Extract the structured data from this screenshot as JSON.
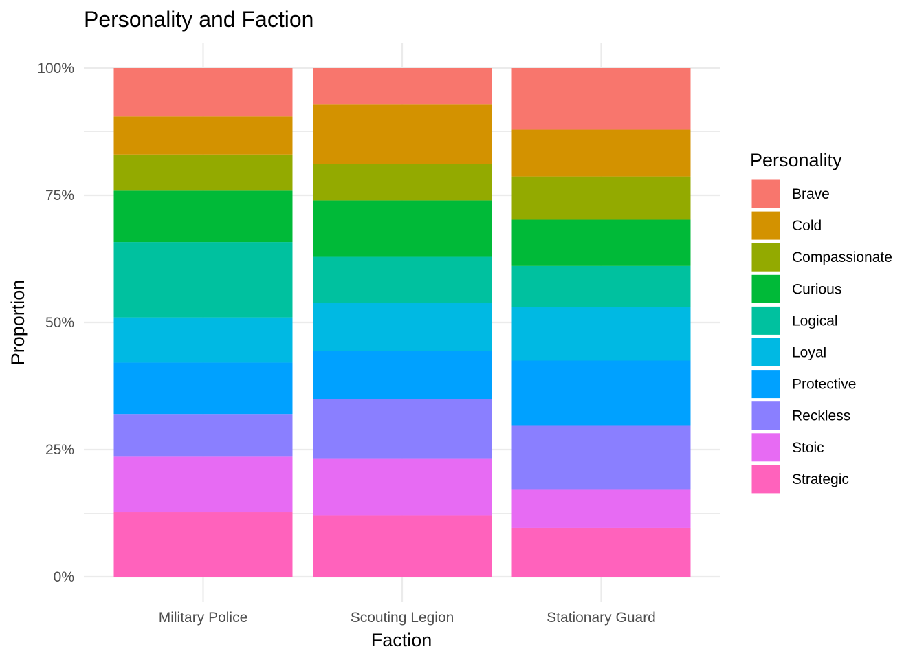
{
  "chart_data": {
    "type": "bar",
    "stacked": "proportion",
    "title": "Personality and Faction",
    "xlabel": "Faction",
    "ylabel": "Proportion",
    "ylim": [
      0,
      1
    ],
    "yticks": [
      0,
      0.25,
      0.5,
      0.75,
      1
    ],
    "ytick_labels": [
      "0%",
      "25%",
      "50%",
      "75%",
      "100%"
    ],
    "grid": true,
    "legend_title": "Personality",
    "legend_position": "right",
    "categories": [
      "Military Police",
      "Scouting Legion",
      "Stationary Guard"
    ],
    "series": [
      {
        "name": "Brave",
        "color": "#F8766D",
        "values": [
          0.095,
          0.072,
          0.121
        ]
      },
      {
        "name": "Cold",
        "color": "#D39200",
        "values": [
          0.075,
          0.116,
          0.092
        ]
      },
      {
        "name": "Compassionate",
        "color": "#93AA00",
        "values": [
          0.071,
          0.072,
          0.085
        ]
      },
      {
        "name": "Curious",
        "color": "#00BA38",
        "values": [
          0.101,
          0.111,
          0.091
        ]
      },
      {
        "name": "Logical",
        "color": "#00C19F",
        "values": [
          0.148,
          0.09,
          0.08
        ]
      },
      {
        "name": "Loyal",
        "color": "#00B9E3",
        "values": [
          0.089,
          0.095,
          0.106
        ]
      },
      {
        "name": "Protective",
        "color": "#00A1FF",
        "values": [
          0.101,
          0.095,
          0.127
        ]
      },
      {
        "name": "Reckless",
        "color": "#8A7FFF",
        "values": [
          0.084,
          0.116,
          0.127
        ]
      },
      {
        "name": "Stoic",
        "color": "#E76BF3",
        "values": [
          0.109,
          0.112,
          0.075
        ]
      },
      {
        "name": "Strategic",
        "color": "#FF62BC",
        "values": [
          0.127,
          0.121,
          0.096
        ]
      }
    ]
  }
}
